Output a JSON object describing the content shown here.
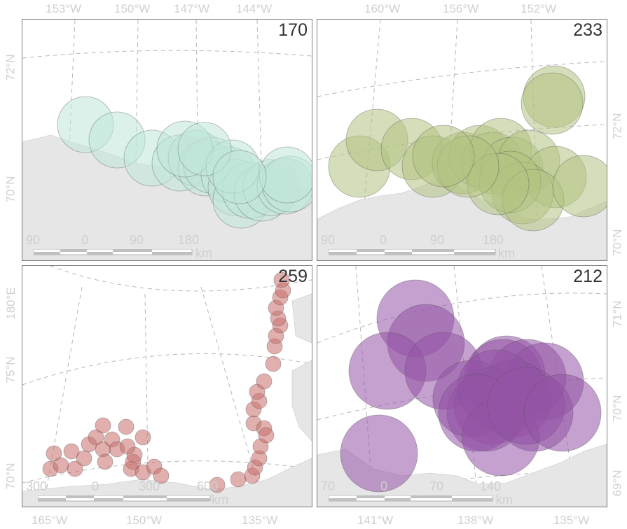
{
  "colors": {
    "land": "#e6e6e6",
    "graticule": "#b8b8b8",
    "panel_border": "#808080",
    "tick_label": "#d0d0d0",
    "panel_label": "#333333",
    "scalebar_label": "#cfcfcf",
    "series": {
      "170": "#bfe6d9",
      "233": "#b3c282",
      "259": "#c9706c",
      "212": "#9354a6"
    }
  },
  "top_lon_labels": {
    "left": [
      "153°W",
      "150°W",
      "147°W",
      "144°W"
    ],
    "right": [
      "160°W",
      "156°W",
      "152°W"
    ]
  },
  "bottom_lon_labels": {
    "left": [
      "165°W",
      "150°W",
      "135°W"
    ],
    "right": [
      "141°W",
      "138°W",
      "135°W"
    ]
  },
  "lat_labels": {
    "left_top": [
      "72°N",
      "70°N"
    ],
    "left_bottom": [
      "180°E",
      "75°N",
      "70°N"
    ],
    "right_top": [
      "72°N",
      "70°N"
    ],
    "right_bottom": [
      "71°N",
      "70°N",
      "69°N"
    ]
  },
  "panels": [
    {
      "id": "170",
      "scale_labels": [
        "90",
        "0",
        "90",
        "180"
      ],
      "scale_unit": "km",
      "circles": [
        [
          90,
          150,
          40
        ],
        [
          135,
          172,
          40
        ],
        [
          185,
          198,
          40
        ],
        [
          225,
          205,
          40
        ],
        [
          248,
          198,
          40
        ],
        [
          262,
          212,
          40
        ],
        [
          270,
          208,
          40
        ],
        [
          295,
          222,
          40
        ],
        [
          305,
          240,
          40
        ],
        [
          312,
          258,
          40
        ],
        [
          325,
          244,
          40
        ],
        [
          342,
          248,
          40
        ],
        [
          355,
          240,
          40
        ],
        [
          375,
          238,
          40
        ],
        [
          382,
          235,
          40
        ],
        [
          378,
          222,
          40
        ],
        [
          232,
          185,
          40
        ],
        [
          300,
          210,
          38
        ],
        [
          260,
          185,
          38
        ],
        [
          310,
          225,
          38
        ]
      ]
    },
    {
      "id": "233",
      "scale_labels": [
        "90",
        "0",
        "90",
        "180"
      ],
      "scale_unit": "km",
      "circles": [
        [
          60,
          210,
          44
        ],
        [
          85,
          172,
          44
        ],
        [
          135,
          185,
          44
        ],
        [
          165,
          210,
          44
        ],
        [
          208,
          205,
          44
        ],
        [
          232,
          195,
          44
        ],
        [
          250,
          205,
          44
        ],
        [
          262,
          185,
          44
        ],
        [
          278,
          212,
          44
        ],
        [
          302,
          202,
          44
        ],
        [
          338,
          110,
          44
        ],
        [
          335,
          120,
          44
        ],
        [
          340,
          225,
          44
        ],
        [
          293,
          248,
          44
        ],
        [
          275,
          232,
          44
        ],
        [
          308,
          258,
          44
        ],
        [
          380,
          238,
          44
        ],
        [
          258,
          235,
          44
        ],
        [
          215,
          210,
          44
        ],
        [
          180,
          195,
          44
        ]
      ]
    },
    {
      "id": "259",
      "scale_labels": [
        "300",
        "0",
        "300",
        "600"
      ],
      "scale_unit": "km",
      "circles": [
        [
          40,
          290,
          11
        ],
        [
          45,
          268,
          11
        ],
        [
          55,
          285,
          11
        ],
        [
          70,
          265,
          11
        ],
        [
          75,
          290,
          11
        ],
        [
          88,
          275,
          11
        ],
        [
          95,
          255,
          11
        ],
        [
          105,
          245,
          11
        ],
        [
          115,
          262,
          11
        ],
        [
          118,
          280,
          11
        ],
        [
          128,
          248,
          11
        ],
        [
          135,
          262,
          11
        ],
        [
          155,
          290,
          11
        ],
        [
          158,
          280,
          11
        ],
        [
          172,
          295,
          11
        ],
        [
          160,
          270,
          11
        ],
        [
          150,
          258,
          11
        ],
        [
          115,
          228,
          11
        ],
        [
          148,
          230,
          11
        ],
        [
          172,
          245,
          11
        ],
        [
          188,
          287,
          11
        ],
        [
          198,
          300,
          11
        ],
        [
          278,
          313,
          11
        ],
        [
          308,
          305,
          11
        ],
        [
          328,
          300,
          11
        ],
        [
          332,
          288,
          11
        ],
        [
          338,
          275,
          11
        ],
        [
          330,
          225,
          11
        ],
        [
          345,
          232,
          11
        ],
        [
          340,
          258,
          11
        ],
        [
          348,
          242,
          11
        ],
        [
          330,
          205,
          11
        ],
        [
          338,
          193,
          11
        ],
        [
          335,
          180,
          11
        ],
        [
          345,
          165,
          11
        ],
        [
          358,
          140,
          11
        ],
        [
          360,
          115,
          11
        ],
        [
          362,
          100,
          11
        ],
        [
          368,
          85,
          11
        ],
        [
          365,
          75,
          11
        ],
        [
          362,
          60,
          11
        ],
        [
          368,
          45,
          11
        ],
        [
          372,
          35,
          11
        ],
        [
          370,
          20,
          11
        ]
      ]
    },
    {
      "id": "212",
      "scale_labels": [
        "70",
        "0",
        "70",
        "140"
      ],
      "scale_unit": "km",
      "circles": [
        [
          140,
          75,
          55
        ],
        [
          155,
          110,
          55
        ],
        [
          100,
          150,
          55
        ],
        [
          180,
          150,
          55
        ],
        [
          270,
          155,
          55
        ],
        [
          265,
          160,
          55
        ],
        [
          300,
          160,
          55
        ],
        [
          325,
          165,
          55
        ],
        [
          220,
          190,
          55
        ],
        [
          250,
          200,
          55
        ],
        [
          240,
          210,
          55
        ],
        [
          280,
          190,
          55
        ],
        [
          310,
          210,
          55
        ],
        [
          255,
          175,
          55
        ],
        [
          228,
          210,
          55
        ],
        [
          88,
          268,
          55
        ],
        [
          262,
          245,
          55
        ],
        [
          298,
          200,
          55
        ],
        [
          350,
          210,
          55
        ]
      ]
    }
  ]
}
